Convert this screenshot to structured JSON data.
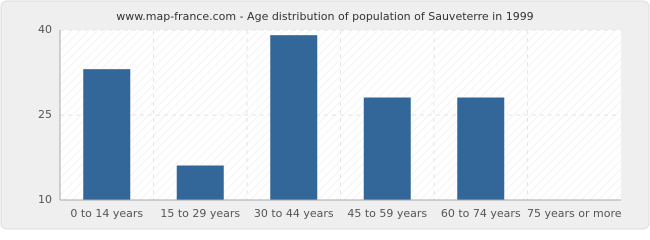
{
  "chart_data": {
    "type": "bar",
    "title": "www.map-france.com - Age distribution of population of Sauveterre in 1999",
    "categories": [
      "0 to 14 years",
      "15 to 29 years",
      "30 to 44 years",
      "45 to 59 years",
      "60 to 74 years",
      "75 years or more"
    ],
    "values": [
      33,
      16,
      39,
      28,
      28,
      10
    ],
    "color": "#336699",
    "ylim": [
      10,
      40
    ],
    "yticks": [
      10,
      25,
      40
    ],
    "grid": true
  }
}
